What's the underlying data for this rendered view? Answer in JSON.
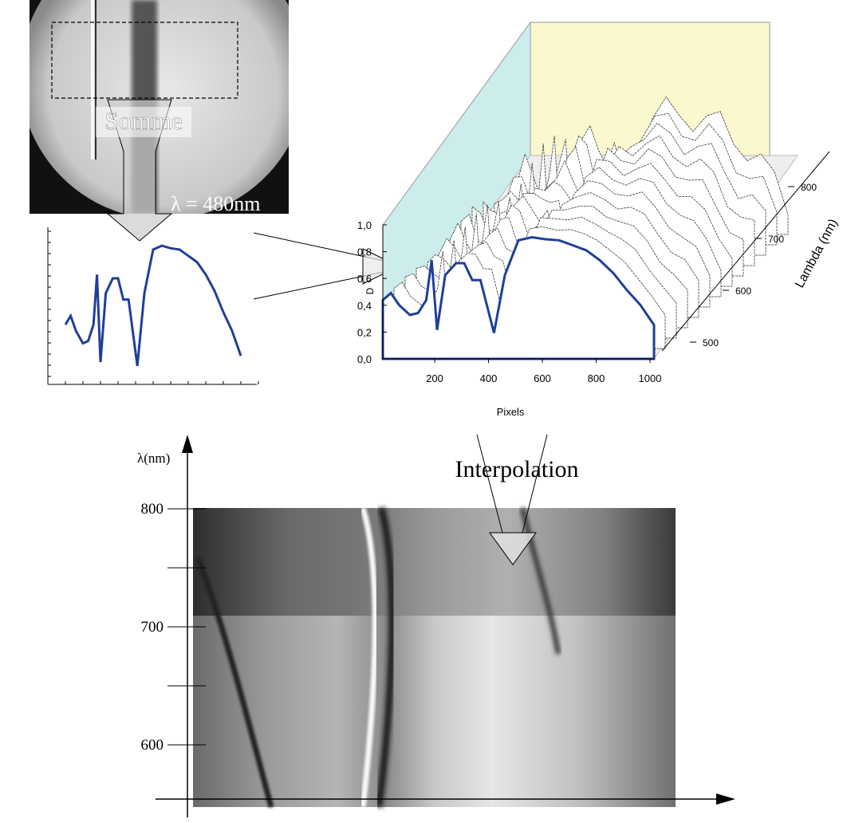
{
  "photo": {
    "label": "Somme",
    "wavelength": "λ = 480nm"
  },
  "surface_plot": {
    "y_axis": {
      "label": "D",
      "ticks": [
        "0,0",
        "0,2",
        "0,4",
        "0,6",
        "0,8",
        "1,0"
      ]
    },
    "x_axis": {
      "label": "Pixels",
      "ticks": [
        "200",
        "400",
        "600",
        "800",
        "1000"
      ]
    },
    "depth_axis": {
      "label": "Lambda (nm)",
      "ticks": [
        "500",
        "600",
        "700",
        "800"
      ]
    }
  },
  "interpolation": {
    "label": "Interpolation"
  },
  "map": {
    "y_axis": {
      "label": "λ(nm)",
      "ticks": [
        "800",
        "700",
        "600"
      ]
    }
  }
}
